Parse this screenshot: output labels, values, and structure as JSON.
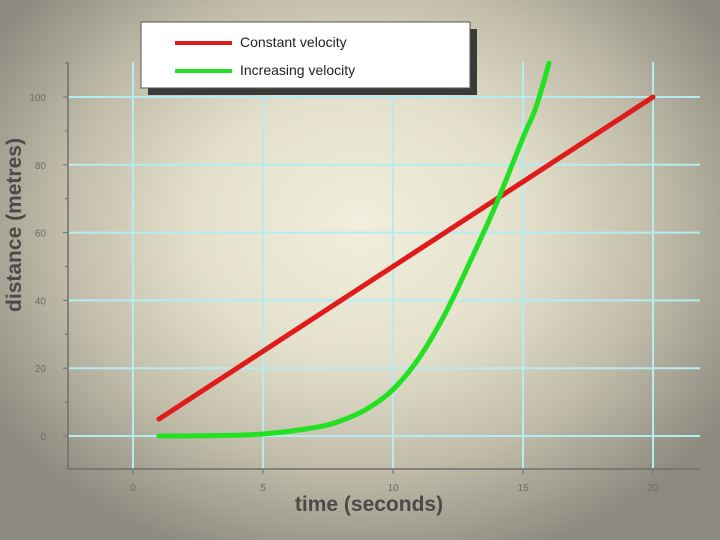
{
  "chart_data": {
    "type": "line",
    "title": "",
    "xlabel": "time (seconds)",
    "ylabel": "distance (metres)",
    "xlim": [
      0,
      20
    ],
    "ylim": [
      -5,
      110
    ],
    "grid": true,
    "legend_position": "top",
    "x_ticks": [
      0,
      5,
      10,
      15,
      20
    ],
    "y_ticks": [
      0,
      20,
      40,
      60,
      80,
      100
    ],
    "series": [
      {
        "name": "Constant velocity",
        "color": "#e01b1b",
        "x": [
          1,
          20
        ],
        "y": [
          5,
          100
        ]
      },
      {
        "name": "Increasing velocity",
        "color": "#22e022",
        "x": [
          1,
          3,
          5,
          7,
          8,
          9,
          10,
          11,
          12,
          13,
          14,
          15,
          15.5,
          16
        ],
        "y": [
          0,
          0.1,
          0.6,
          2.5,
          4.5,
          8,
          13.7,
          23,
          36,
          52,
          69,
          88,
          97,
          110
        ]
      }
    ]
  }
}
